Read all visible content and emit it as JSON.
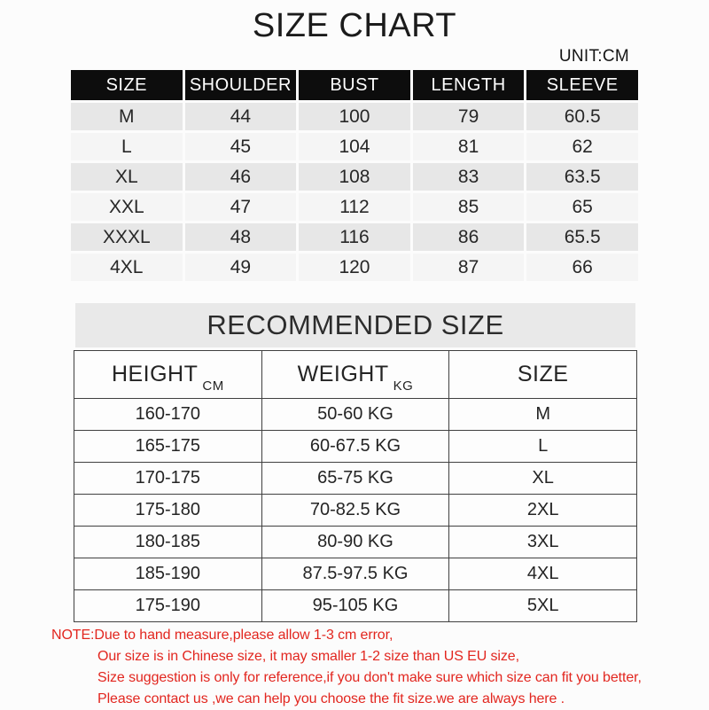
{
  "page": {
    "title": "SIZE CHART",
    "unit_label": "UNIT:CM"
  },
  "colors": {
    "header_bg": "#0d0d0d",
    "row_stripe_dark": "#e7e7e7",
    "row_stripe_light": "#f5f5f5",
    "band_bg": "#e9e9e9",
    "table_border": "#404040",
    "note_red": "#e2261f"
  },
  "size_table": {
    "headers": [
      "SIZE",
      "SHOULDER",
      "BUST",
      "LENGTH",
      "SLEEVE"
    ],
    "rows": [
      [
        "M",
        "44",
        "100",
        "79",
        "60.5"
      ],
      [
        "L",
        "45",
        "104",
        "81",
        "62"
      ],
      [
        "XL",
        "46",
        "108",
        "83",
        "63.5"
      ],
      [
        "XXL",
        "47",
        "112",
        "85",
        "65"
      ],
      [
        "XXXL",
        "48",
        "116",
        "86",
        "65.5"
      ],
      [
        "4XL",
        "49",
        "120",
        "87",
        "66"
      ]
    ]
  },
  "recommended": {
    "heading": "RECOMMENDED SIZE",
    "headers": [
      {
        "label": "HEIGHT",
        "unit": "CM"
      },
      {
        "label": "WEIGHT",
        "unit": "KG"
      },
      {
        "label": "SIZE",
        "unit": ""
      }
    ],
    "rows": [
      [
        "160-170",
        "50-60 KG",
        "M"
      ],
      [
        "165-175",
        "60-67.5 KG",
        "L"
      ],
      [
        "170-175",
        "65-75 KG",
        "XL"
      ],
      [
        "175-180",
        "70-82.5 KG",
        "2XL"
      ],
      [
        "180-185",
        "80-90 KG",
        "3XL"
      ],
      [
        "185-190",
        "87.5-97.5 KG",
        "4XL"
      ],
      [
        "175-190",
        "95-105 KG",
        "5XL"
      ]
    ]
  },
  "note": {
    "lines": [
      "NOTE:Due to hand measure,please allow 1-3 cm error,",
      "Our size is in Chinese size, it may smaller 1-2 size than US EU size,",
      "Size suggestion is only for reference,if you don't make sure which size can fit you better,",
      "Please contact  us ,we can help you choose the fit size.we are  always here ."
    ]
  }
}
